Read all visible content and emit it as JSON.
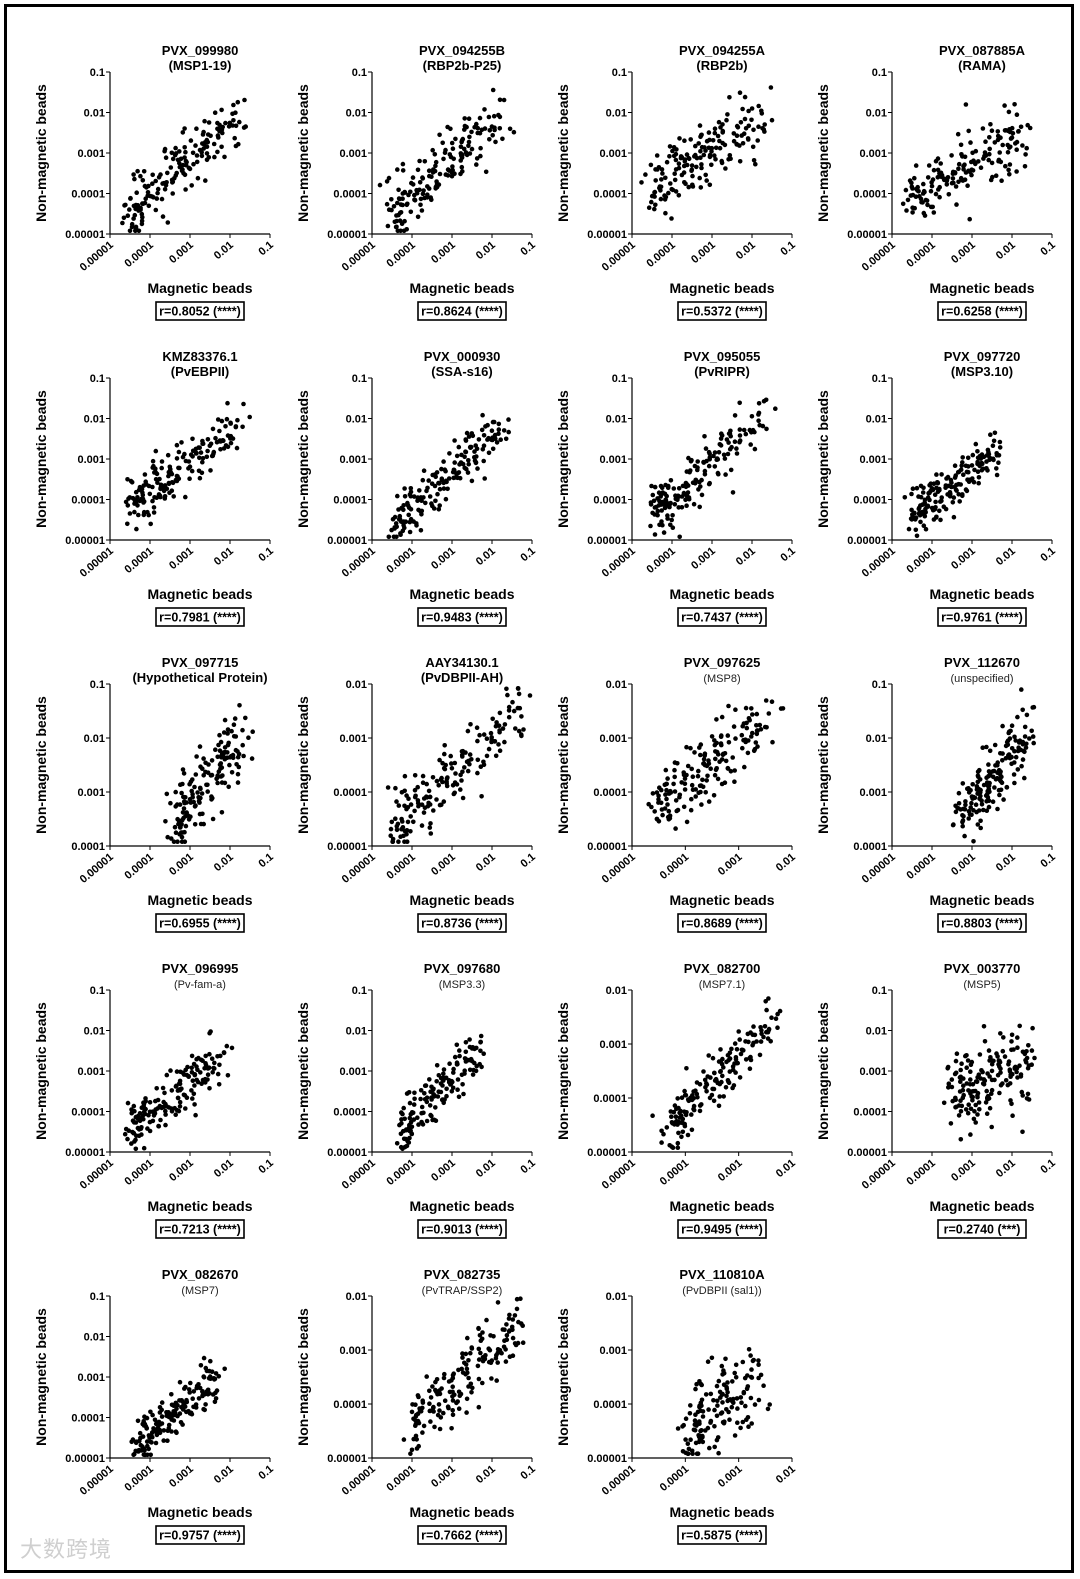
{
  "chart_data": [
    {
      "type": "scatter",
      "title": "PVX_099980",
      "subtitle": "(MSP1-19)",
      "subtitle_style": "bold",
      "xlabel": "Magnetic beads",
      "ylabel": "Non-magnetic beads",
      "x_scale": "log",
      "y_scale": "log",
      "xlim": [
        1e-05,
        0.1
      ],
      "ylim": [
        1e-05,
        0.1
      ],
      "x_ticks": [
        "0.00001",
        "0.0001",
        "0.001",
        "0.01",
        "0.1"
      ],
      "y_ticks": [
        "0.1",
        "0.01",
        "0.001",
        "0.0001",
        "0.00001"
      ],
      "correlation": "r=0.8052 (****)",
      "n_points": 170,
      "trend": {
        "x0": 3e-05,
        "x1": 0.02,
        "y0": 3e-05,
        "y1": 0.015,
        "spread": 0.35
      }
    },
    {
      "type": "scatter",
      "title": "PVX_094255B",
      "subtitle": "(RBP2b-P25)",
      "subtitle_style": "bold",
      "xlabel": "Magnetic beads",
      "ylabel": "Non-magnetic beads",
      "x_scale": "log",
      "y_scale": "log",
      "xlim": [
        1e-05,
        0.1
      ],
      "ylim": [
        1e-05,
        0.1
      ],
      "x_ticks": [
        "0.00001",
        "0.0001",
        "0.001",
        "0.01",
        "0.1"
      ],
      "y_ticks": [
        "0.1",
        "0.01",
        "0.001",
        "0.0001",
        "0.00001"
      ],
      "correlation": "r=0.8624 (****)",
      "n_points": 170,
      "trend": {
        "x0": 3e-05,
        "x1": 0.02,
        "y0": 3e-05,
        "y1": 0.012,
        "spread": 0.35
      }
    },
    {
      "type": "scatter",
      "title": "PVX_094255A",
      "subtitle": "(RBP2b)",
      "subtitle_style": "bold",
      "xlabel": "Magnetic beads",
      "ylabel": "Non-magnetic beads",
      "x_scale": "log",
      "y_scale": "log",
      "xlim": [
        1e-05,
        0.1
      ],
      "ylim": [
        1e-05,
        0.1
      ],
      "x_ticks": [
        "0.00001",
        "0.0001",
        "0.001",
        "0.01",
        "0.1"
      ],
      "y_ticks": [
        "0.1",
        "0.01",
        "0.001",
        "0.0001",
        "0.00001"
      ],
      "correlation": "r=0.5372 (****)",
      "n_points": 170,
      "trend": {
        "x0": 3e-05,
        "x1": 0.02,
        "y0": 0.0002,
        "y1": 0.006,
        "spread": 0.4
      }
    },
    {
      "type": "scatter",
      "title": "PVX_087885A",
      "subtitle": "(RAMA)",
      "subtitle_style": "bold",
      "xlabel": "Magnetic beads",
      "ylabel": "Non-magnetic beads",
      "x_scale": "log",
      "y_scale": "log",
      "xlim": [
        1e-05,
        0.1
      ],
      "ylim": [
        1e-05,
        0.1
      ],
      "x_ticks": [
        "0.00001",
        "0.0001",
        "0.001",
        "0.01",
        "0.1"
      ],
      "y_ticks": [
        "0.1",
        "0.01",
        "0.001",
        "0.0001",
        "0.00001"
      ],
      "correlation": "r=0.6258 (****)",
      "n_points": 170,
      "trend": {
        "x0": 3e-05,
        "x1": 0.02,
        "y0": 8e-05,
        "y1": 0.003,
        "spread": 0.4
      }
    },
    {
      "type": "scatter",
      "title": "KMZ83376.1",
      "subtitle": "(PvEBPII)",
      "subtitle_style": "bold",
      "xlabel": "Magnetic beads",
      "ylabel": "Non-magnetic beads",
      "x_scale": "log",
      "y_scale": "log",
      "xlim": [
        1e-05,
        0.1
      ],
      "ylim": [
        1e-05,
        0.1
      ],
      "x_ticks": [
        "0.00001",
        "0.0001",
        "0.001",
        "0.01",
        "0.1"
      ],
      "y_ticks": [
        "0.1",
        "0.01",
        "0.001",
        "0.0001",
        "0.00001"
      ],
      "correlation": "r=0.7981 (****)",
      "n_points": 170,
      "trend": {
        "x0": 3e-05,
        "x1": 0.02,
        "y0": 6e-05,
        "y1": 0.008,
        "spread": 0.3
      }
    },
    {
      "type": "scatter",
      "title": "PVX_000930",
      "subtitle": "(SSA-s16)",
      "subtitle_style": "bold",
      "xlabel": "Magnetic beads",
      "ylabel": "Non-magnetic beads",
      "x_scale": "log",
      "y_scale": "log",
      "xlim": [
        1e-05,
        0.1
      ],
      "ylim": [
        1e-05,
        0.1
      ],
      "x_ticks": [
        "0.00001",
        "0.0001",
        "0.001",
        "0.01",
        "0.1"
      ],
      "y_ticks": [
        "0.1",
        "0.01",
        "0.001",
        "0.0001",
        "0.00001"
      ],
      "correlation": "r=0.9483 (****)",
      "n_points": 170,
      "trend": {
        "x0": 3e-05,
        "x1": 0.02,
        "y0": 2e-05,
        "y1": 0.008,
        "spread": 0.3
      }
    },
    {
      "type": "scatter",
      "title": "PVX_095055",
      "subtitle": "(PvRIPR)",
      "subtitle_style": "bold",
      "xlabel": "Magnetic beads",
      "ylabel": "Non-magnetic beads",
      "x_scale": "log",
      "y_scale": "log",
      "xlim": [
        1e-05,
        0.1
      ],
      "ylim": [
        1e-05,
        0.1
      ],
      "x_ticks": [
        "0.00001",
        "0.0001",
        "0.001",
        "0.01",
        "0.1"
      ],
      "y_ticks": [
        "0.1",
        "0.01",
        "0.001",
        "0.0001",
        "0.00001"
      ],
      "correlation": "r=0.7437 (****)",
      "n_points": 170,
      "trend": {
        "x0": 4e-05,
        "x1": 0.02,
        "y0": 4e-05,
        "y1": 0.012,
        "spread": 0.35
      }
    },
    {
      "type": "scatter",
      "title": "PVX_097720",
      "subtitle": "(MSP3.10)",
      "subtitle_style": "bold",
      "xlabel": "Magnetic beads",
      "ylabel": "Non-magnetic beads",
      "x_scale": "log",
      "y_scale": "log",
      "xlim": [
        1e-05,
        0.1
      ],
      "ylim": [
        1e-05,
        0.1
      ],
      "x_ticks": [
        "0.00001",
        "0.0001",
        "0.001",
        "0.01",
        "0.1"
      ],
      "y_ticks": [
        "0.1",
        "0.01",
        "0.001",
        "0.0001",
        "0.00001"
      ],
      "correlation": "r=0.9761 (****)",
      "n_points": 170,
      "trend": {
        "x0": 3e-05,
        "x1": 0.005,
        "y0": 4e-05,
        "y1": 0.002,
        "spread": 0.3
      }
    },
    {
      "type": "scatter",
      "title": "PVX_097715",
      "subtitle": "(Hypothetical Protein)",
      "subtitle_style": "bold",
      "xlabel": "Magnetic beads",
      "ylabel": "Non-magnetic beads",
      "x_scale": "log",
      "y_scale": "log",
      "xlim": [
        1e-05,
        0.1
      ],
      "ylim": [
        0.0001,
        0.1
      ],
      "x_ticks": [
        "0.00001",
        "0.0001",
        "0.001",
        "0.01",
        "0.1"
      ],
      "y_ticks": [
        "0.1",
        "0.01",
        "0.001",
        "0.0001"
      ],
      "correlation": "r=0.6955 (****)",
      "n_points": 160,
      "trend": {
        "x0": 0.0004,
        "x1": 0.025,
        "y0": 0.0003,
        "y1": 0.012,
        "spread": 0.35
      }
    },
    {
      "type": "scatter",
      "title": "AAY34130.1",
      "subtitle": "(PvDBPII-AH)",
      "subtitle_style": "bold",
      "xlabel": "Magnetic beads",
      "ylabel": "Non-magnetic beads",
      "x_scale": "log",
      "y_scale": "log",
      "xlim": [
        1e-05,
        0.1
      ],
      "ylim": [
        1e-05,
        0.01
      ],
      "x_ticks": [
        "0.00001",
        "0.0001",
        "0.001",
        "0.01",
        "0.1"
      ],
      "y_ticks": [
        "0.01",
        "0.001",
        "0.0001",
        "0.00001"
      ],
      "correlation": "r=0.8736 (****)",
      "n_points": 170,
      "trend": {
        "x0": 3e-05,
        "x1": 0.05,
        "y0": 2e-05,
        "y1": 0.003,
        "spread": 0.3
      }
    },
    {
      "type": "scatter",
      "title": "PVX_097625",
      "subtitle": "(MSP8)",
      "subtitle_style": "light",
      "xlabel": "Magnetic beads",
      "ylabel": "Non-magnetic beads",
      "x_scale": "log",
      "y_scale": "log",
      "xlim": [
        1e-05,
        0.01
      ],
      "ylim": [
        1e-05,
        0.01
      ],
      "x_ticks": [
        "0.00001",
        "0.0001",
        "0.001",
        "0.01"
      ],
      "y_ticks": [
        "0.01",
        "0.001",
        "0.0001",
        "0.00001"
      ],
      "correlation": "r=0.8689 (****)",
      "n_points": 170,
      "trend": {
        "x0": 3e-05,
        "x1": 0.005,
        "y0": 5e-05,
        "y1": 0.003,
        "spread": 0.3
      }
    },
    {
      "type": "scatter",
      "title": "PVX_112670",
      "subtitle": "(unspecified)",
      "subtitle_style": "light",
      "xlabel": "Magnetic beads",
      "ylabel": "Non-magnetic beads",
      "x_scale": "log",
      "y_scale": "log",
      "xlim": [
        1e-05,
        0.1
      ],
      "ylim": [
        0.0001,
        0.1
      ],
      "x_ticks": [
        "0.00001",
        "0.0001",
        "0.001",
        "0.01",
        "0.1"
      ],
      "y_ticks": [
        "0.1",
        "0.01",
        "0.001",
        "0.0001"
      ],
      "correlation": "r=0.8803 (****)",
      "n_points": 170,
      "trend": {
        "x0": 0.0005,
        "x1": 0.03,
        "y0": 0.0003,
        "y1": 0.015,
        "spread": 0.3
      }
    },
    {
      "type": "scatter",
      "title": "PVX_096995",
      "subtitle": "(Pv-fam-a)",
      "subtitle_style": "light",
      "xlabel": "Magnetic beads",
      "ylabel": "Non-magnetic beads",
      "x_scale": "log",
      "y_scale": "log",
      "xlim": [
        1e-05,
        0.1
      ],
      "ylim": [
        1e-05,
        0.1
      ],
      "x_ticks": [
        "0.00001",
        "0.0001",
        "0.001",
        "0.01",
        "0.1"
      ],
      "y_ticks": [
        "0.1",
        "0.01",
        "0.001",
        "0.0001",
        "0.00001"
      ],
      "correlation": "r=0.7213 (****)",
      "n_points": 170,
      "trend": {
        "x0": 3e-05,
        "x1": 0.01,
        "y0": 4e-05,
        "y1": 0.003,
        "spread": 0.35
      }
    },
    {
      "type": "scatter",
      "title": "PVX_097680",
      "subtitle": "(MSP3.3)",
      "subtitle_style": "light",
      "xlabel": "Magnetic beads",
      "ylabel": "Non-magnetic beads",
      "x_scale": "log",
      "y_scale": "log",
      "xlim": [
        1e-05,
        0.1
      ],
      "ylim": [
        1e-05,
        0.1
      ],
      "x_ticks": [
        "0.00001",
        "0.0001",
        "0.001",
        "0.01",
        "0.1"
      ],
      "y_ticks": [
        "0.1",
        "0.01",
        "0.001",
        "0.0001",
        "0.00001"
      ],
      "correlation": "r=0.9013 (****)",
      "n_points": 150,
      "trend": {
        "x0": 5e-05,
        "x1": 0.005,
        "y0": 3e-05,
        "y1": 0.003,
        "spread": 0.3
      }
    },
    {
      "type": "scatter",
      "title": "PVX_082700",
      "subtitle": "(MSP7.1)",
      "subtitle_style": "light",
      "xlabel": "Magnetic beads",
      "ylabel": "Non-magnetic beads",
      "x_scale": "log",
      "y_scale": "log",
      "xlim": [
        1e-05,
        0.01
      ],
      "ylim": [
        1e-05,
        0.01
      ],
      "x_ticks": [
        "0.00001",
        "0.0001",
        "0.001",
        "0.01"
      ],
      "y_ticks": [
        "0.01",
        "0.001",
        "0.0001",
        "0.00001"
      ],
      "correlation": "r=0.9495 (****)",
      "n_points": 170,
      "trend": {
        "x0": 5e-05,
        "x1": 0.005,
        "y0": 3e-05,
        "y1": 0.003,
        "spread": 0.22
      }
    },
    {
      "type": "scatter",
      "title": "PVX_003770",
      "subtitle": "(MSP5)",
      "subtitle_style": "light",
      "xlabel": "Magnetic beads",
      "ylabel": "Non-magnetic beads",
      "x_scale": "log",
      "y_scale": "log",
      "xlim": [
        1e-05,
        0.1
      ],
      "ylim": [
        1e-05,
        0.1
      ],
      "x_ticks": [
        "0.00001",
        "0.0001",
        "0.001",
        "0.01",
        "0.1"
      ],
      "y_ticks": [
        "0.1",
        "0.01",
        "0.001",
        "0.0001",
        "0.00001"
      ],
      "correlation": "r=0.2740 (***)",
      "n_points": 170,
      "trend": {
        "x0": 0.0003,
        "x1": 0.03,
        "y0": 0.0003,
        "y1": 0.002,
        "spread": 0.55
      }
    },
    {
      "type": "scatter",
      "title": "PVX_082670",
      "subtitle": "(MSP7)",
      "subtitle_style": "light",
      "xlabel": "Magnetic beads",
      "ylabel": "Non-magnetic beads",
      "x_scale": "log",
      "y_scale": "log",
      "xlim": [
        1e-05,
        0.1
      ],
      "ylim": [
        1e-05,
        0.1
      ],
      "x_ticks": [
        "0.00001",
        "0.0001",
        "0.001",
        "0.01",
        "0.1"
      ],
      "y_ticks": [
        "0.1",
        "0.01",
        "0.001",
        "0.0001",
        "0.00001"
      ],
      "correlation": "r=0.9757 (****)",
      "n_points": 170,
      "trend": {
        "x0": 5e-05,
        "x1": 0.005,
        "y0": 2e-05,
        "y1": 0.001,
        "spread": 0.25
      }
    },
    {
      "type": "scatter",
      "title": "PVX_082735",
      "subtitle": "(PvTRAP/SSP2)",
      "subtitle_style": "light",
      "xlabel": "Magnetic beads",
      "ylabel": "Non-magnetic beads",
      "x_scale": "log",
      "y_scale": "log",
      "xlim": [
        1e-05,
        0.1
      ],
      "ylim": [
        1e-05,
        0.01
      ],
      "x_ticks": [
        "0.00001",
        "0.0001",
        "0.001",
        "0.01",
        "0.1"
      ],
      "y_ticks": [
        "0.01",
        "0.001",
        "0.0001",
        "0.00001"
      ],
      "correlation": "r=0.7662 (****)",
      "n_points": 170,
      "trend": {
        "x0": 0.0001,
        "x1": 0.05,
        "y0": 4e-05,
        "y1": 0.003,
        "spread": 0.3
      }
    },
    {
      "type": "scatter",
      "title": "PVX_110810A",
      "subtitle": "(PvDBPII (sal1))",
      "subtitle_style": "light",
      "xlabel": "Magnetic beads",
      "ylabel": "Non-magnetic beads",
      "x_scale": "log",
      "y_scale": "log",
      "xlim": [
        1e-05,
        0.01
      ],
      "ylim": [
        1e-05,
        0.01
      ],
      "x_ticks": [
        "0.00001",
        "0.0001",
        "0.001",
        "0.01"
      ],
      "y_ticks": [
        "0.01",
        "0.001",
        "0.0001",
        "0.00001"
      ],
      "correlation": "r=0.5875 (****)",
      "n_points": 150,
      "trend": {
        "x0": 0.0001,
        "x1": 0.003,
        "y0": 3e-05,
        "y1": 0.0003,
        "spread": 0.4
      }
    }
  ],
  "watermark": "大数跨境"
}
